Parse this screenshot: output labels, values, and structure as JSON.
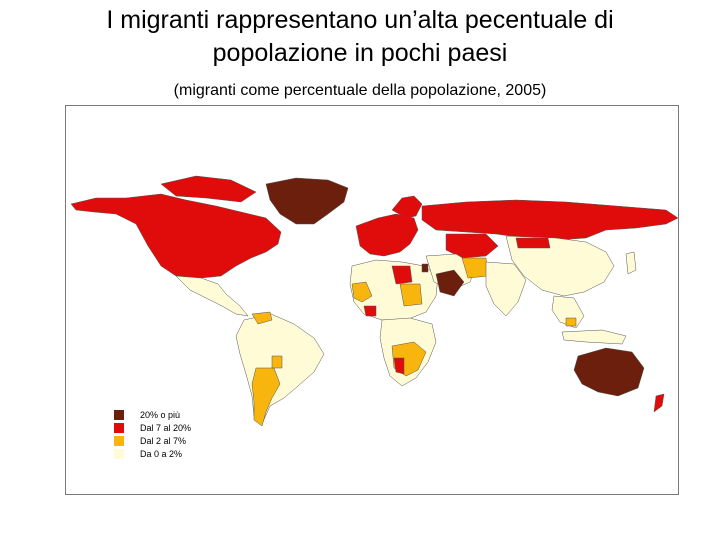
{
  "title_line1": "I migranti rappresentano un’alta pecentuale di",
  "title_line2": "popolazione in pochi paesi",
  "subtitle": "(migranti come percentuale della popolazione, 2005)",
  "colors": {
    "high": "#6b1f0c",
    "mid_high": "#e00b0b",
    "mid_low": "#f7b50e",
    "low": "#fffbd6",
    "border": "#555555"
  },
  "legend": [
    {
      "label": "20% o più",
      "color": "#6b1f0c"
    },
    {
      "label": "Dal 7 al 20%",
      "color": "#e00b0b"
    },
    {
      "label": "Dal 2 al 7%",
      "color": "#f7b50e"
    },
    {
      "label": "Da 0 a 2%",
      "color": "#fffbd6"
    }
  ]
}
